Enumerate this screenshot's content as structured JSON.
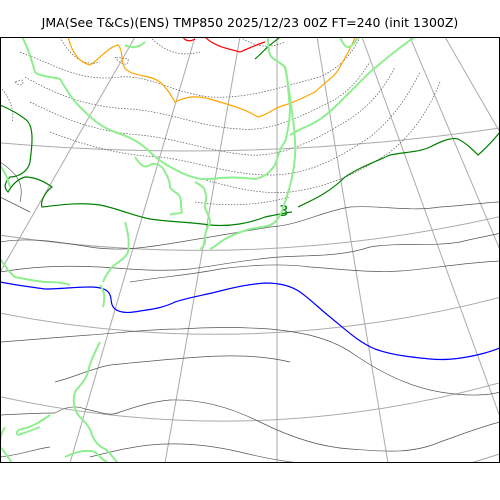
{
  "header": {
    "title": "JMA(See T&Cs)(ENS) TMP850 2025/12/23 00Z FT=240 (init 1300Z)"
  },
  "map": {
    "contour_label": "3",
    "colors": {
      "coastline": "#90ee90",
      "graticule": "#aaaaaa",
      "isotherm_thin": "#555555",
      "isotherm_dotted": "#555555",
      "contour_green": "#008000",
      "contour_blue": "#0000ff",
      "contour_orange": "#ffa500",
      "contour_red": "#ff0000",
      "frame": "#000000"
    }
  }
}
